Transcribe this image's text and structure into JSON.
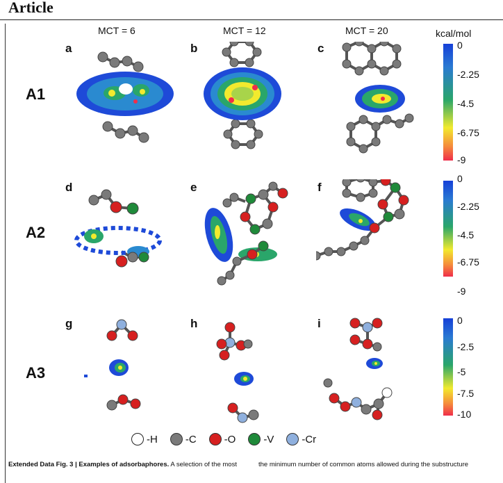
{
  "header": {
    "title": "Article"
  },
  "columns": [
    "MCT = 6",
    "MCT = 12",
    "MCT = 20"
  ],
  "unit": "kcal/mol",
  "rows": [
    "A1",
    "A2",
    "A3"
  ],
  "panels": [
    "a",
    "b",
    "c",
    "d",
    "e",
    "f",
    "g",
    "h",
    "i"
  ],
  "colorbars": [
    {
      "ticks": [
        "0",
        "-2.25",
        "-4.5",
        "-6.75",
        "-9"
      ]
    },
    {
      "ticks": [
        "0",
        "-2.25",
        "-4.5",
        "-6.75",
        "-9"
      ]
    },
    {
      "ticks": [
        "0",
        "-2.5",
        "-5",
        "-7.5",
        "-10"
      ]
    }
  ],
  "legend": [
    {
      "label": "-H",
      "color": "#ffffff"
    },
    {
      "label": "-C",
      "color": "#7a7a7a"
    },
    {
      "label": "-O",
      "color": "#d62020"
    },
    {
      "label": "-V",
      "color": "#1f8a3a"
    },
    {
      "label": "-Cr",
      "color": "#8fb0de"
    }
  ],
  "caption": {
    "left_bold": "Extended Data Fig. 3 | Examples of adsorbaphores.",
    "left_text": "A selection of the most",
    "right_text": "the minimum number of common atoms allowed during the substructure"
  }
}
